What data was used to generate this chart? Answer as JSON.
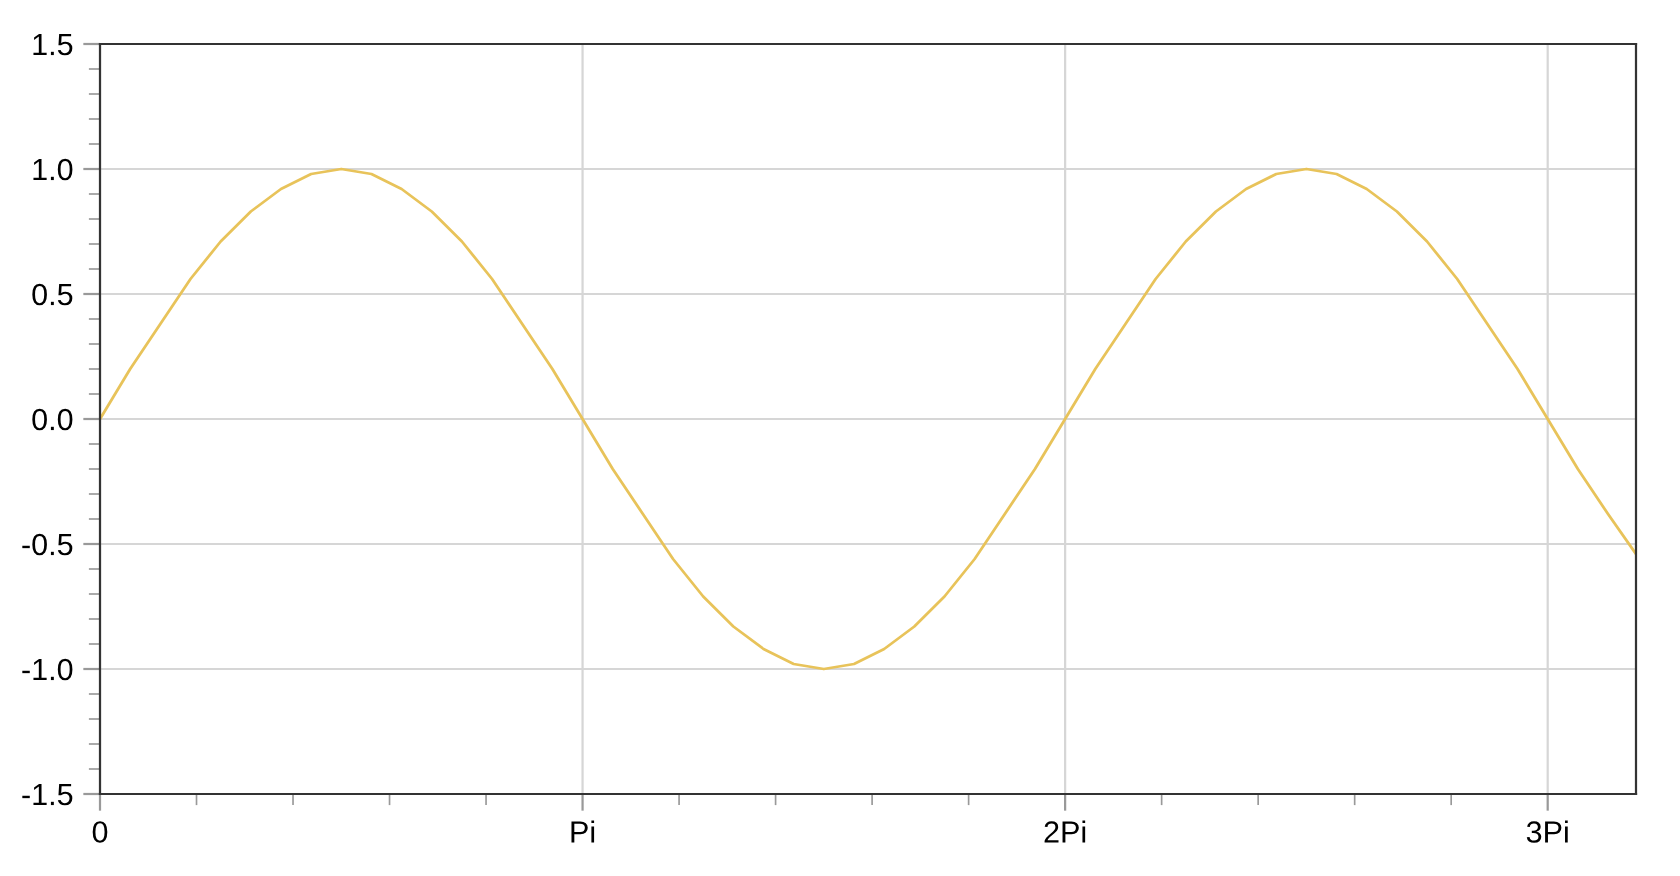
{
  "chart_data": {
    "type": "line",
    "x": [
      0,
      0.0625,
      0.125,
      0.1875,
      0.25,
      0.3125,
      0.375,
      0.4375,
      0.5,
      0.5625,
      0.625,
      0.6875,
      0.75,
      0.8125,
      0.875,
      0.9375,
      1,
      1.0625,
      1.125,
      1.1875,
      1.25,
      1.3125,
      1.375,
      1.4375,
      1.5,
      1.5625,
      1.625,
      1.6875,
      1.75,
      1.8125,
      1.875,
      1.9375,
      2,
      2.0625,
      2.125,
      2.1875,
      2.25,
      2.3125,
      2.375,
      2.4375,
      2.5,
      2.5625,
      2.625,
      2.6875,
      2.75,
      2.8125,
      2.875,
      2.9375,
      3,
      3.0625,
      3.125,
      3.183
    ],
    "series": [
      {
        "color": "#e8c35a",
        "values": [
          0,
          0.2,
          0.38,
          0.56,
          0.71,
          0.83,
          0.92,
          0.98,
          1.0,
          0.98,
          0.92,
          0.83,
          0.71,
          0.56,
          0.38,
          0.2,
          0,
          -0.2,
          -0.38,
          -0.56,
          -0.71,
          -0.83,
          -0.92,
          -0.98,
          -1.0,
          -0.98,
          -0.92,
          -0.83,
          -0.71,
          -0.56,
          -0.38,
          -0.2,
          0,
          0.2,
          0.38,
          0.56,
          0.71,
          0.83,
          0.92,
          0.98,
          1.0,
          0.98,
          0.92,
          0.83,
          0.71,
          0.56,
          0.38,
          0.2,
          0,
          -0.2,
          -0.38,
          -0.54
        ]
      }
    ],
    "xlim": [
      0,
      3.183
    ],
    "ylim": [
      -1.5,
      1.5
    ],
    "xticks": [
      0,
      {
        "value": 1,
        "label": "Pi"
      },
      {
        "value": 2,
        "label": "2Pi"
      },
      {
        "value": 3,
        "label": "3Pi"
      }
    ],
    "yticks": [
      {
        "value": -1.5,
        "label": "-1.5"
      },
      {
        "value": -1.0,
        "label": "-1.0"
      },
      {
        "value": -0.5,
        "label": "-0.5"
      },
      {
        "value": 0.0,
        "label": "0.0"
      },
      {
        "value": 0.5,
        "label": "0.5"
      },
      {
        "value": 1.0,
        "label": "1.0"
      },
      {
        "value": 1.5,
        "label": "1.5"
      }
    ],
    "grid": true,
    "marker": "none",
    "line_style": "solid"
  }
}
